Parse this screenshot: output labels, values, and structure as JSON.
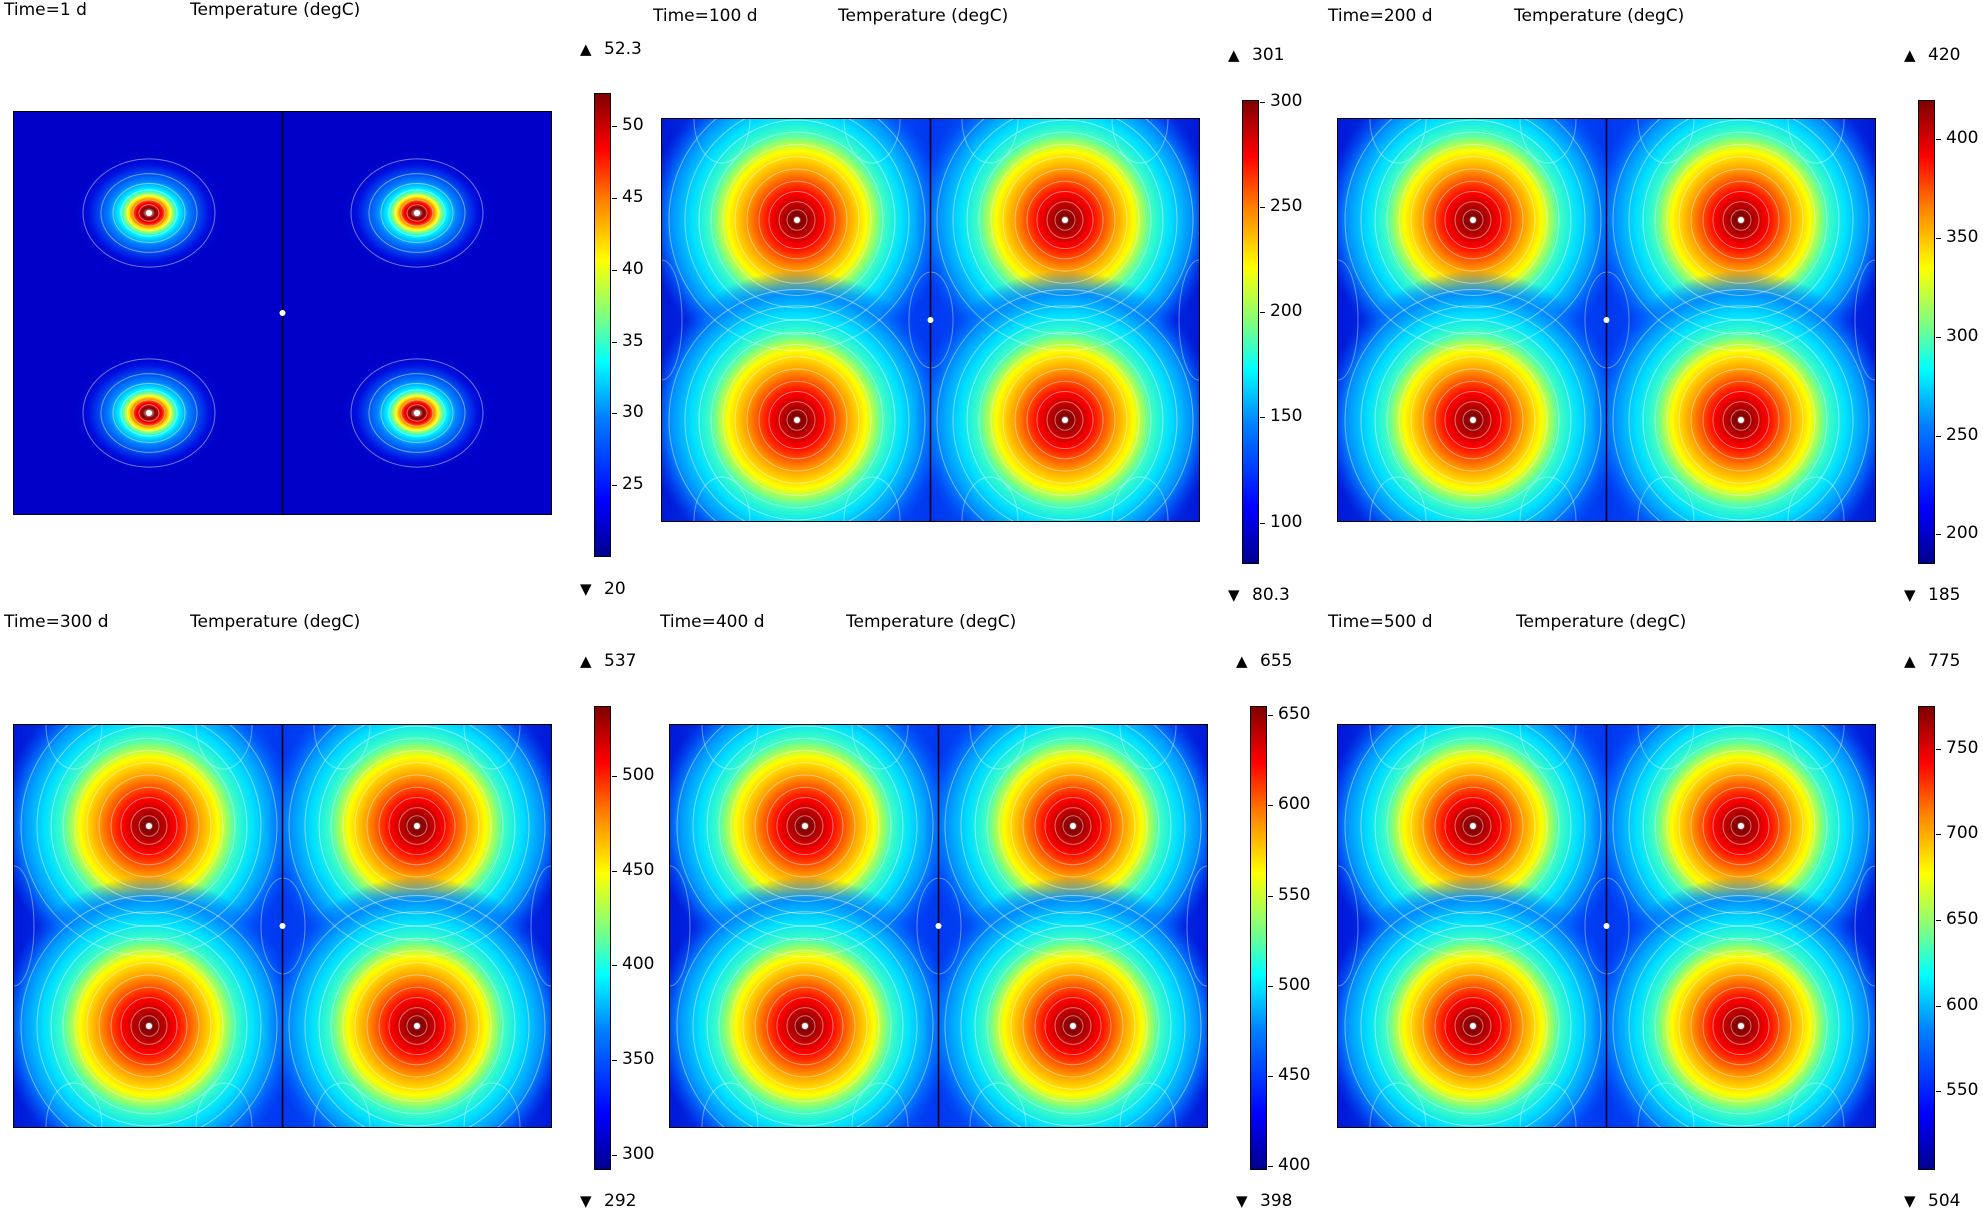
{
  "chart_data": [
    {
      "type": "heatmap",
      "time_label": "Time=1 d",
      "title": "Temperature (degC)",
      "colorbar_max_label": "52.3",
      "colorbar_min_label": "20",
      "range": [
        20,
        52.3
      ],
      "ticks": [
        25,
        30,
        35,
        40,
        45,
        50
      ],
      "spread": 0.35
    },
    {
      "type": "heatmap",
      "time_label": "Time=100 d",
      "title": "Temperature (degC)",
      "colorbar_max_label": "301",
      "colorbar_min_label": "80.3",
      "range": [
        80.3,
        301
      ],
      "ticks": [
        100,
        150,
        200,
        250,
        300
      ],
      "spread": 1.0
    },
    {
      "type": "heatmap",
      "time_label": "Time=200 d",
      "title": "Temperature (degC)",
      "colorbar_max_label": "420",
      "colorbar_min_label": "185",
      "range": [
        185,
        420
      ],
      "ticks": [
        200,
        250,
        300,
        350,
        400
      ],
      "spread": 1.0
    },
    {
      "type": "heatmap",
      "time_label": "Time=300 d",
      "title": "Temperature (degC)",
      "colorbar_max_label": "537",
      "colorbar_min_label": "292",
      "range": [
        292,
        537
      ],
      "ticks": [
        300,
        350,
        400,
        450,
        500
      ],
      "spread": 1.0
    },
    {
      "type": "heatmap",
      "time_label": "Time=400 d",
      "title": "Temperature (degC)",
      "colorbar_max_label": "655",
      "colorbar_min_label": "398",
      "range": [
        398,
        655
      ],
      "ticks": [
        400,
        450,
        500,
        550,
        600,
        650
      ],
      "spread": 1.0
    },
    {
      "type": "heatmap",
      "time_label": "Time=500 d",
      "title": "Temperature (degC)",
      "colorbar_max_label": "775",
      "colorbar_min_label": "504",
      "range": [
        504,
        775
      ],
      "ticks": [
        550,
        600,
        650,
        700,
        750
      ],
      "spread": 1.0
    }
  ]
}
